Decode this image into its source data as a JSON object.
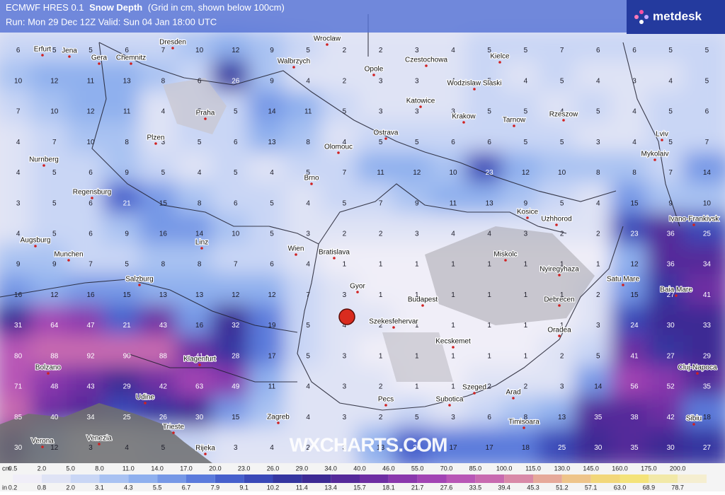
{
  "header": {
    "title_model": "ECMWF HRES 0.1",
    "title_variable": "Snow Depth",
    "title_note": "(Grid in cm, shown below 100cm)",
    "run_line": "Run: Mon 29 Dec 12Z Valid: Sun 04 Jan 18:00 UTC",
    "logo": "metdesk"
  },
  "watermark": "WXCHARTS.COM",
  "cities": [
    "Erfurt",
    "Jena",
    "Gera",
    "Chemnitz",
    "Dresden",
    "Wroclaw",
    "Walbrzych",
    "Opole",
    "Czestochowa",
    "Kielce",
    "Wodzislaw Slaski",
    "Katowice",
    "Krakow",
    "Tarnow",
    "Rzeszow",
    "Lviv",
    "Mykolaiv",
    "Praha",
    "Plzen",
    "Ostrava",
    "Olomouc",
    "Nurnberg",
    "Brno",
    "Regensburg",
    "Kosice",
    "Uzhhorod",
    "Ivano-Frankivsk",
    "Augsburg",
    "Linz",
    "Wien",
    "Bratislava",
    "Munchen",
    "Miskolc",
    "Nyiregyhaza",
    "Salzburg",
    "Gyor",
    "Budapest",
    "Debrecen",
    "Satu Mare",
    "Baia Mare",
    "Szekesfehervar",
    "Kecskemet",
    "Oradea",
    "Bolzano",
    "Klagenfurt",
    "Cluj-Napoca",
    "Szeged",
    "Arad",
    "Udine",
    "Pecs",
    "Subotica",
    "Timisoara",
    "Trieste",
    "Venezia",
    "Zagreb",
    "Sibiu",
    "Verona",
    "Rijeka"
  ],
  "grid": [
    [
      6,
      5,
      5,
      6,
      7,
      10,
      12,
      9,
      5,
      2,
      2,
      3,
      4,
      5,
      5,
      7,
      6,
      6,
      5,
      5
    ],
    [
      10,
      12,
      11,
      13,
      8,
      6,
      26,
      9,
      4,
      2,
      3,
      3,
      4,
      5,
      4,
      5,
      4,
      3,
      4,
      5
    ],
    [
      7,
      10,
      12,
      11,
      4,
      5,
      5,
      14,
      11,
      5,
      3,
      3,
      3,
      5,
      5,
      4,
      5,
      4,
      5,
      6
    ],
    [
      4,
      7,
      10,
      8,
      3,
      5,
      6,
      13,
      8,
      4,
      5,
      5,
      6,
      6,
      5,
      5,
      3,
      4,
      5,
      7
    ],
    [
      4,
      5,
      6,
      9,
      5,
      4,
      5,
      4,
      5,
      7,
      11,
      12,
      10,
      23,
      12,
      10,
      8,
      8,
      7,
      14
    ],
    [
      3,
      5,
      6,
      21,
      15,
      8,
      6,
      5,
      4,
      5,
      7,
      9,
      11,
      13,
      9,
      5,
      4,
      15,
      9,
      10
    ],
    [
      4,
      5,
      6,
      9,
      16,
      14,
      10,
      5,
      3,
      2,
      2,
      3,
      4,
      4,
      3,
      2,
      2,
      23,
      36,
      25
    ],
    [
      9,
      9,
      7,
      5,
      8,
      8,
      7,
      6,
      4,
      1,
      1,
      1,
      1,
      1,
      1,
      1,
      1,
      12,
      36,
      34
    ],
    [
      16,
      12,
      16,
      15,
      13,
      13,
      12,
      12,
      7,
      3,
      1,
      1,
      1,
      1,
      1,
      1,
      2,
      15,
      27,
      41
    ],
    [
      31,
      64,
      47,
      21,
      43,
      16,
      32,
      19,
      5,
      4,
      2,
      1,
      1,
      1,
      1,
      1,
      3,
      24,
      30,
      33
    ],
    [
      80,
      88,
      92,
      90,
      88,
      41,
      28,
      17,
      5,
      3,
      1,
      1,
      1,
      1,
      1,
      2,
      5,
      41,
      27,
      29
    ],
    [
      71,
      48,
      43,
      29,
      42,
      63,
      49,
      11,
      4,
      3,
      2,
      1,
      1,
      2,
      2,
      3,
      14,
      56,
      52,
      35
    ],
    [
      85,
      40,
      34,
      25,
      26,
      30,
      15,
      8,
      4,
      3,
      2,
      5,
      3,
      6,
      8,
      13,
      35,
      38,
      42,
      18
    ],
    [
      30,
      12,
      3,
      4,
      5,
      6,
      3,
      4,
      2,
      3,
      13,
      20,
      17,
      17,
      18,
      25,
      30,
      35,
      30,
      27
    ]
  ],
  "colorbar": {
    "cm_unit": "cm",
    "cm_labels": [
      "0.5",
      "2.0",
      "5.0",
      "8.0",
      "11.0",
      "14.0",
      "17.0",
      "20.0",
      "23.0",
      "26.0",
      "29.0",
      "34.0",
      "40.0",
      "46.0",
      "55.0",
      "70.0",
      "85.0",
      "100.0",
      "115.0",
      "130.0",
      "145.0",
      "160.0",
      "175.0",
      "200.0"
    ],
    "in_unit": "in",
    "in_labels": [
      "0.2",
      "0.8",
      "2.0",
      "3.1",
      "4.3",
      "5.5",
      "6.7",
      "7.9",
      "9.1",
      "10.2",
      "11.4",
      "13.4",
      "15.7",
      "18.1",
      "21.7",
      "27.6",
      "33.5",
      "39.4",
      "45.3",
      "51.2",
      "57.1",
      "63.0",
      "68.9",
      "78.7"
    ],
    "colors": [
      "#f0eef8",
      "#dfe3f5",
      "#c9d6f5",
      "#a9c2f2",
      "#8fb0ee",
      "#7698e6",
      "#5b7bdc",
      "#4660cc",
      "#3a49b8",
      "#3536a0",
      "#3d2a94",
      "#552a9a",
      "#6e2ea3",
      "#8a38ad",
      "#a244b4",
      "#b857b6",
      "#c86bb0",
      "#d98aa8",
      "#e6a99a",
      "#eec48a",
      "#f2d77a",
      "#f4e37a",
      "#f2e9a8",
      "#f5eed0"
    ]
  }
}
